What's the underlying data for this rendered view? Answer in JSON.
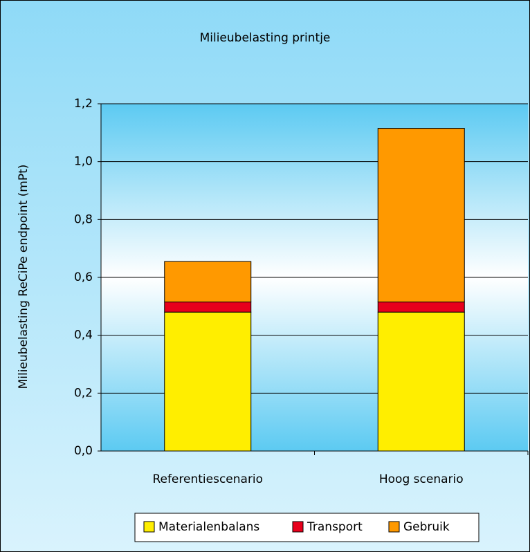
{
  "chart_data": {
    "type": "stacked_bar",
    "title": "Milieubelasting printje",
    "y_label": "Milieubelasting ReCiPe endpoint (mPt)",
    "categories": [
      "Referentiescenario",
      "Hoog scenario"
    ],
    "series": [
      {
        "name": "Materialenbalans",
        "color": "#ffee00",
        "values": [
          0.48,
          0.48
        ]
      },
      {
        "name": "Transport",
        "color": "#e8001c",
        "values": [
          0.035,
          0.035
        ]
      },
      {
        "name": "Gebruik",
        "color": "#ff9900",
        "values": [
          0.14,
          0.6
        ]
      }
    ],
    "ylim": [
      0,
      1.2
    ],
    "yticks": [
      {
        "value": 0,
        "label": "0,0"
      },
      {
        "value": 0.2,
        "label": "0,2"
      },
      {
        "value": 0.4,
        "label": "0,4"
      },
      {
        "value": 0.6,
        "label": "0,6"
      },
      {
        "value": 0.8,
        "label": "0,8"
      },
      {
        "value": 1.0,
        "label": "1,0"
      },
      {
        "value": 1.2,
        "label": "1,2"
      }
    ],
    "grid": true,
    "legend": "bottom"
  }
}
